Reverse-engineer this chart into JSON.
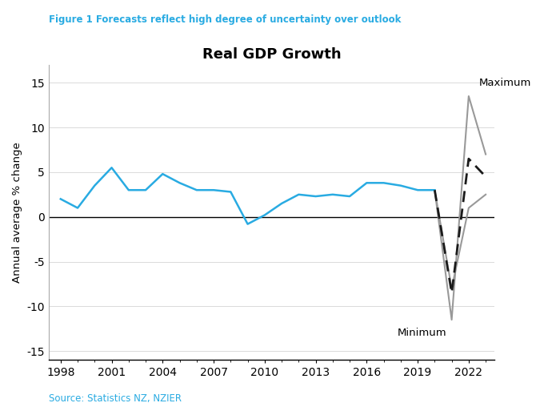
{
  "figure_label": "Figure 1 Forecasts reflect high degree of uncertainty over outlook",
  "title": "Real GDP Growth",
  "ylabel": "Annual average % change",
  "source": "Source: Statistics NZ, NZIER",
  "xlim": [
    1997.3,
    2023.5
  ],
  "ylim": [
    -16,
    17
  ],
  "yticks": [
    -15,
    -10,
    -5,
    0,
    5,
    10,
    15
  ],
  "xticks": [
    1998,
    2001,
    2004,
    2007,
    2010,
    2013,
    2016,
    2019,
    2022
  ],
  "blue_line_x": [
    1998,
    1999,
    2000,
    2001,
    2002,
    2003,
    2004,
    2005,
    2006,
    2007,
    2008,
    2009,
    2010,
    2011,
    2012,
    2013,
    2014,
    2015,
    2016,
    2017,
    2018,
    2019,
    2020
  ],
  "blue_line_y": [
    2.0,
    1.0,
    3.5,
    5.5,
    3.0,
    3.0,
    4.8,
    3.8,
    3.0,
    3.0,
    2.8,
    -0.8,
    0.2,
    1.5,
    2.5,
    2.3,
    2.5,
    2.3,
    3.8,
    3.8,
    3.5,
    3.0,
    3.0
  ],
  "dashed_line_x": [
    2020,
    2021,
    2022,
    2023
  ],
  "dashed_line_y": [
    3.0,
    -8.5,
    6.5,
    4.5
  ],
  "max_line_x": [
    2020,
    2021,
    2022,
    2023
  ],
  "max_line_y": [
    3.0,
    -11.5,
    13.5,
    7.0
  ],
  "min_line_x": [
    2020,
    2021,
    2022,
    2023
  ],
  "min_line_y": [
    3.0,
    -8.0,
    1.0,
    2.5
  ],
  "blue_color": "#29ABE2",
  "dashed_color": "#1a1a1a",
  "gray_color": "#999999",
  "figure_label_color": "#29ABE2",
  "source_color": "#29ABE2",
  "background_color": "#ffffff",
  "maximum_label": "Maximum",
  "minimum_label": "Minimum",
  "maximum_anno_x": 2022.6,
  "maximum_anno_y": 15.0,
  "minimum_anno_x": 2017.8,
  "minimum_anno_y": -13.0
}
